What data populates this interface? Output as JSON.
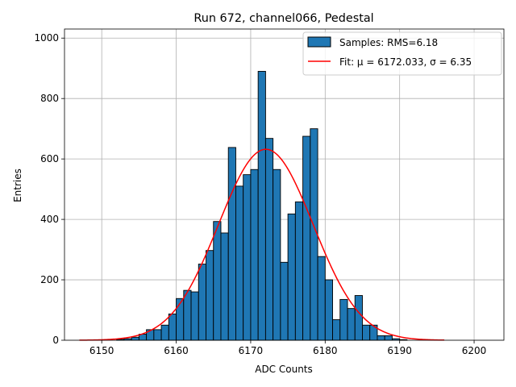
{
  "chart_data": {
    "type": "bar",
    "title": "Run 672, channel066, Pedestal",
    "xlabel": "ADC Counts",
    "ylabel": "Entries",
    "xlim": [
      6145,
      6204
    ],
    "ylim": [
      0,
      1030
    ],
    "xticks": [
      6150,
      6160,
      6170,
      6180,
      6190,
      6200
    ],
    "yticks": [
      0,
      200,
      400,
      600,
      800,
      1000
    ],
    "grid": true,
    "legend_position": "top-right",
    "bin_width": 1,
    "histogram": {
      "name": "Samples: RMS=6.18",
      "color": "#1f77b4",
      "bin_starts": [
        6152,
        6153,
        6154,
        6155,
        6156,
        6157,
        6158,
        6159,
        6160,
        6161,
        6162,
        6163,
        6164,
        6165,
        6166,
        6167,
        6168,
        6169,
        6170,
        6171,
        6172,
        6173,
        6174,
        6175,
        6176,
        6177,
        6178,
        6179,
        6180,
        6181,
        6182,
        6183,
        6184,
        6185,
        6186,
        6187,
        6188,
        6189,
        6190
      ],
      "values": [
        3,
        5,
        10,
        20,
        35,
        35,
        50,
        87,
        138,
        165,
        160,
        252,
        297,
        393,
        355,
        638,
        510,
        548,
        565,
        890,
        668,
        565,
        258,
        418,
        458,
        675,
        700,
        277,
        200,
        68,
        135,
        105,
        148,
        50,
        50,
        15,
        15,
        5,
        2
      ]
    },
    "fit": {
      "name": "Fit: μ = 6172.033, σ = 6.35",
      "color": "#ff0000",
      "mu": 6172.033,
      "sigma": 6.35,
      "amplitude": 632,
      "x_range": [
        6147,
        6196
      ]
    }
  }
}
